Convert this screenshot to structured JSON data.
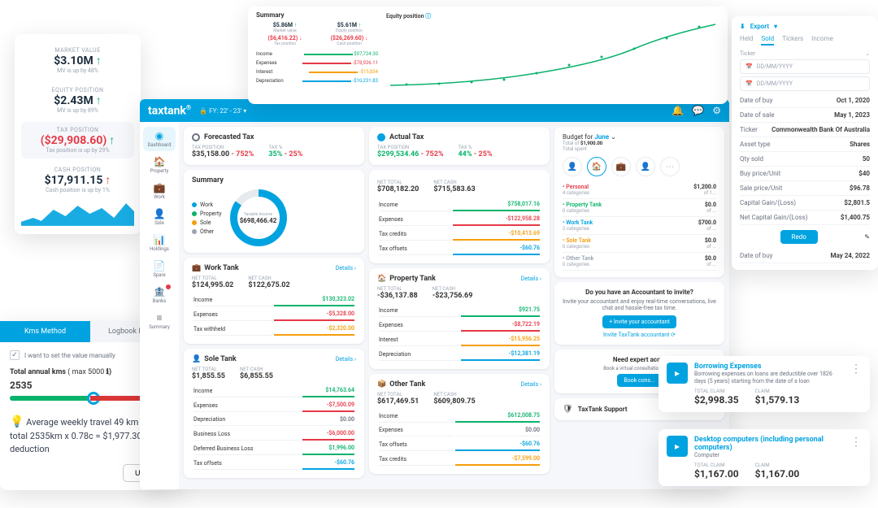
{
  "positions": {
    "items": [
      {
        "label": "MARKET VALUE",
        "value": "$3.10M",
        "dir": "up",
        "dirColor": "#0ab26b",
        "sub": "MV is up by 48%"
      },
      {
        "label": "EQUITY POSITION",
        "value": "$2.43M",
        "dir": "up",
        "dirColor": "#0ab26b",
        "sub": "MV is up by 89%"
      },
      {
        "label": "TAX POSITION",
        "value": "($29,908.60)",
        "dir": "up",
        "dirColor": "#0ab26b",
        "sub": "Tax position is up by 29%",
        "valColor": "#e63946",
        "active": true
      },
      {
        "label": "CASH POSITION",
        "value": "$17,911.15",
        "dir": "up",
        "dirColor": "#e63946",
        "sub": "Cash position is up by 1%"
      }
    ],
    "chartColor": "#00a3e0"
  },
  "kms": {
    "tabs": [
      "Kms Method",
      "Logbook Results"
    ],
    "activeTab": 0,
    "checkboxLabel": "I want to set the value manually",
    "titlePrefix": "Total annual kms",
    "titleMax": "( max 5000 ",
    "infoIcon": "ℹ",
    "titleSuffix": ")",
    "value": "2535",
    "travel": "Average weekly travel 49 km and total 2535km x 0.78c = $1,977.30 deduction",
    "updateBtn": "Update"
  },
  "dashboard": {
    "brand": "taxtank",
    "fy": "FY: 22' - 23'",
    "lockIcon": "🔒",
    "nav": [
      {
        "icon": "◉",
        "label": "Dashboard",
        "active": true
      },
      {
        "icon": "🏠",
        "label": "Property"
      },
      {
        "icon": "💼",
        "label": "Work"
      },
      {
        "icon": "👤",
        "label": "Sole"
      },
      {
        "icon": "📊",
        "label": "Holdings"
      },
      {
        "icon": "📄",
        "label": "Spare"
      },
      {
        "icon": "🏦",
        "label": "Banks",
        "badge": true
      },
      {
        "icon": "≡",
        "label": "Summary"
      }
    ],
    "forecasted": {
      "title": "Forecasted Tax",
      "taxPosLabel": "TAX POSITION",
      "taxPos": "$35,158.00",
      "taxPosPct": "- 752%",
      "pctLabel": "TAX %",
      "pct": "35%",
      "pctDelta": "- 25%"
    },
    "actual": {
      "title": "Actual Tax",
      "taxPosLabel": "TAX POSITION",
      "taxPos": "$299,534.46",
      "taxPosPct": "- 752%",
      "pctLabel": "TAX %",
      "pct": "44%",
      "pctDelta": "- 25%"
    },
    "summary": {
      "title": "Summary",
      "legend": [
        {
          "label": "Work",
          "color": "#00a3e0"
        },
        {
          "label": "Property",
          "color": "#0ab26b"
        },
        {
          "label": "Sole",
          "color": "#f59e0b"
        },
        {
          "label": "Other",
          "color": "#9aa4b2"
        }
      ],
      "donutLabel": "Taxable Income",
      "donutValue": "$698,466.42",
      "netTotalLabel": "NET TOTAL",
      "netTotal": "$708,182.20",
      "netCashLabel": "NET CASH",
      "netCash": "$715,583.63",
      "rows": [
        {
          "k": "Income",
          "v": "$758,017.16",
          "cls": "bar-green",
          "color": "#0ab26b"
        },
        {
          "k": "Expenses",
          "v": "-$122,958.28",
          "cls": "bar-red",
          "color": "#e63946"
        },
        {
          "k": "Tax credits",
          "v": "-$10,413.69",
          "cls": "bar-orange",
          "color": "#f59e0b"
        },
        {
          "k": "Tax offsets",
          "v": "-$60.76",
          "cls": "bar-blue",
          "color": "#00a3e0"
        }
      ]
    },
    "tanks": [
      {
        "icon": "💼",
        "title": "Work Tank",
        "netTotal": "$124,995.02",
        "netCash": "$122,675.02",
        "rows": [
          {
            "k": "Income",
            "v": "$130,323.02",
            "cls": "bar-green",
            "color": "#0ab26b"
          },
          {
            "k": "Expenses",
            "v": "-$5,328.00",
            "cls": "bar-red",
            "color": "#e63946"
          },
          {
            "k": "Tax withheld",
            "v": "-$2,320.00",
            "cls": "bar-orange",
            "color": "#f59e0b"
          }
        ]
      },
      {
        "icon": "👤",
        "title": "Sole Tank",
        "netTotal": "$1,855.55",
        "netCash": "$6,855.55",
        "rows": [
          {
            "k": "Income",
            "v": "$14,763.64",
            "cls": "bar-green",
            "color": "#0ab26b"
          },
          {
            "k": "Expenses",
            "v": "-$7,500.09",
            "cls": "bar-red",
            "color": "#e63946"
          },
          {
            "k": "Depreciation",
            "v": "$0.00",
            "cls": "",
            "color": "#6b7280"
          },
          {
            "k": "Business Loss",
            "v": "-$6,000.00",
            "cls": "bar-red",
            "color": "#e63946"
          },
          {
            "k": "Deferred Business Loss",
            "v": "$1,996.00",
            "cls": "bar-green",
            "color": "#0ab26b"
          },
          {
            "k": "Tax offsets",
            "v": "-$60.76",
            "cls": "bar-blue",
            "color": "#00a3e0"
          }
        ]
      },
      {
        "icon": "🏠",
        "title": "Property Tank",
        "netTotal": "-$36,137.88",
        "netCash": "-$23,756.69",
        "rows": [
          {
            "k": "Income",
            "v": "$921.75",
            "cls": "bar-green",
            "color": "#0ab26b"
          },
          {
            "k": "Expenses",
            "v": "-$8,722.19",
            "cls": "bar-red",
            "color": "#e63946"
          },
          {
            "k": "Interest",
            "v": "-$15,956.25",
            "cls": "bar-orange",
            "color": "#f59e0b"
          },
          {
            "k": "Depreciation",
            "v": "-$12,381.19",
            "cls": "bar-blue",
            "color": "#00a3e0"
          }
        ]
      },
      {
        "icon": "📦",
        "title": "Other Tank",
        "netTotal": "$617,469.51",
        "netCash": "$609,809.75",
        "rows": [
          {
            "k": "Income",
            "v": "$612,008.75",
            "cls": "bar-green",
            "color": "#0ab26b"
          },
          {
            "k": "Expenses",
            "v": "$0.00",
            "cls": "",
            "color": "#6b7280"
          },
          {
            "k": "Tax offsets",
            "v": "-$60.76",
            "cls": "bar-blue",
            "color": "#00a3e0"
          },
          {
            "k": "Tax credits",
            "v": "-$7,599.00",
            "cls": "bar-orange",
            "color": "#f59e0b"
          }
        ]
      }
    ],
    "budget": {
      "title": "Budget for",
      "month": "June",
      "tag": "⌄",
      "total": "$1,900.00",
      "totalLabel": "Total of",
      "sub": "Total spent",
      "icons": [
        {
          "icon": "👤",
          "label": "Personal"
        },
        {
          "icon": "🏠",
          "label": "Property",
          "active": true
        },
        {
          "icon": "💼",
          "label": "Work"
        },
        {
          "icon": "👤",
          "label": "Sole"
        },
        {
          "icon": "⋯",
          "label": "Other"
        }
      ],
      "list": [
        {
          "cat": "Personal",
          "sub": "4 categories",
          "val": "$1,200.0",
          "pct": "of 1..."
        },
        {
          "cat": "Property Tank",
          "sub": "0 categories",
          "val": "$0.0",
          "pct": "of ..."
        },
        {
          "cat": "Work Tank",
          "sub": "2 categories",
          "val": "$700.0",
          "pct": "of ..."
        },
        {
          "cat": "Sole Tank",
          "sub": "0 categories",
          "val": "$0.0",
          "pct": "of ..."
        },
        {
          "cat": "Other Tank",
          "sub": "0 categories",
          "val": "$0.0",
          "pct": "of ..."
        }
      ],
      "catColors": [
        "#e63946",
        "#0ab26b",
        "#00a3e0",
        "#f59e0b",
        "#9aa4b2"
      ]
    },
    "accountant": {
      "q": "Do you have an Accountant to invite?",
      "desc": "Invite your accountant and enjoy real-time conversations, live chat and hassle-free tax time.",
      "btn": "+ Invite your accountant",
      "link": "Invite TaxTank accountant ⟳"
    },
    "expert": {
      "title": "Need expert acc...",
      "desc": "Book a virtual consultation with...",
      "btn": "Book cons..."
    },
    "support": {
      "icon": "🛡",
      "title": "TaxTank Support"
    },
    "detailsLabel": "Details ›"
  },
  "summaryOverlay": {
    "title": "Summary",
    "grid": [
      {
        "v": "$5.86M",
        "dir": "↑",
        "color": "#0ab26b",
        "l": "Market value"
      },
      {
        "v": "$5.61M",
        "dir": "↑",
        "color": "#0ab26b",
        "l": "Equity position"
      },
      {
        "v": "($6,416.22)",
        "dir": "↓",
        "color": "#e63946",
        "l": "Tax position",
        "vcolor": "#e63946"
      },
      {
        "v": "($26,269.60)",
        "dir": "↓",
        "color": "#e63946",
        "l": "Cash position",
        "vcolor": "#e63946"
      }
    ],
    "rows": [
      {
        "k": "Income",
        "v": "$97,724.30",
        "color": "#0ab26b"
      },
      {
        "k": "Expenses",
        "v": "-$78,926.11",
        "color": "#e63946"
      },
      {
        "k": "Interest",
        "v": "-$15,834",
        "color": "#f59e0b"
      },
      {
        "k": "Depreciation",
        "v": "-$10,231.83",
        "color": "#00a3e0"
      }
    ],
    "chartTitle": "Equity position",
    "chartIcon": "ⓘ",
    "chartColor": "#0ab26b",
    "chartBg": "#f9fafb"
  },
  "export": {
    "icon": "⬇",
    "label": "Export",
    "drop": "▾",
    "tabs": [
      "Held",
      "Sold",
      "Tickers",
      "Income"
    ],
    "activeTab": 1,
    "tickerLabel": "Ticker",
    "tickerDrop": "⌄",
    "datePlaceholder": "DD/MM/YYYY",
    "dateIcon": "📅",
    "rows": [
      {
        "k": "Date of buy",
        "v": "Oct 1, 2020"
      },
      {
        "k": "Date of sale",
        "v": "May 1, 2023"
      },
      {
        "k": "Ticker",
        "v": "Commonwealth Bank Of Australia"
      },
      {
        "k": "Asset type",
        "v": "Shares"
      },
      {
        "k": "Qty sold",
        "v": "50"
      },
      {
        "k": "Buy price/Unit",
        "v": "$40"
      },
      {
        "k": "Sale price/Unit",
        "v": "$96.78"
      },
      {
        "k": "Capital Gain/(Loss)",
        "v": "$2,801.5"
      },
      {
        "k": "Net Capital Gain/(Loss)",
        "v": "$1,400.75"
      }
    ],
    "redoBtn": "Redo",
    "editIcon": "✎",
    "footer": {
      "k": "Date of buy",
      "v": "May 24, 2022"
    }
  },
  "claims": [
    {
      "icon": "▸",
      "title": "Borrowing Expenses",
      "desc": "Borrowing expenses on loans are deductible over 1826 days (5 years) starting from the date of a loan",
      "totalLabel": "TOTAL CLAIM",
      "total": "$2,998.35",
      "claimLabel": "CLAIM",
      "claim": "$1,579.13"
    },
    {
      "icon": "▸",
      "title": "Desktop computers (including personal computers)",
      "desc": "Computer",
      "totalLabel": "TOTAL CLAIM",
      "total": "$1,167.00",
      "claimLabel": "CLAIM",
      "claim": "$1,167.00"
    }
  ]
}
